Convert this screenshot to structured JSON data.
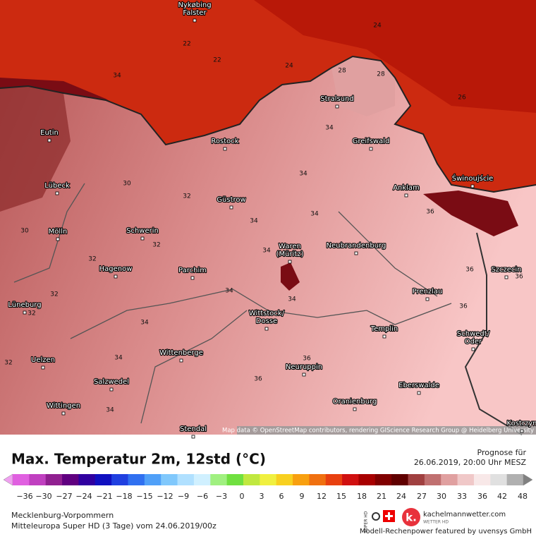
{
  "map": {
    "cities": [
      {
        "lines": [
          "Nykøbing",
          "Falster"
        ]
      },
      {
        "lines": [
          "Eutin"
        ]
      },
      {
        "lines": [
          "Rostock"
        ]
      },
      {
        "lines": [
          "Stralsund"
        ]
      },
      {
        "lines": [
          "Greifswald"
        ]
      },
      {
        "lines": [
          "Lübeck"
        ]
      },
      {
        "lines": [
          "Güstrow"
        ]
      },
      {
        "lines": [
          "Anklam"
        ]
      },
      {
        "lines": [
          "Świnoujście"
        ]
      },
      {
        "lines": [
          "Mölln"
        ]
      },
      {
        "lines": [
          "Schwerin"
        ]
      },
      {
        "lines": [
          "Waren",
          "(Müritz)"
        ]
      },
      {
        "lines": [
          "Neubrandenburg"
        ]
      },
      {
        "lines": [
          "Hagenow"
        ]
      },
      {
        "lines": [
          "Parchim"
        ]
      },
      {
        "lines": [
          "Szczecin"
        ]
      },
      {
        "lines": [
          "Prenzlau"
        ]
      },
      {
        "lines": [
          "Lüneburg"
        ]
      },
      {
        "lines": [
          "Wittstock/",
          "Dosse"
        ]
      },
      {
        "lines": [
          "Schwedt/",
          "Oder"
        ]
      },
      {
        "lines": [
          "Templin"
        ]
      },
      {
        "lines": [
          "Wittenberge"
        ]
      },
      {
        "lines": [
          "Uelzen"
        ]
      },
      {
        "lines": [
          "Neuruppin"
        ]
      },
      {
        "lines": [
          "Salzwedel"
        ]
      },
      {
        "lines": [
          "Eberswalde"
        ]
      },
      {
        "lines": [
          "Oranienburg"
        ]
      },
      {
        "lines": [
          "Wittingen"
        ]
      },
      {
        "lines": [
          "Stendal"
        ]
      },
      {
        "lines": [
          "Kostrzyn"
        ]
      }
    ],
    "contour_labels": [
      "24",
      "22",
      "22",
      "24",
      "34",
      "26",
      "28",
      "28",
      "34",
      "32",
      "34",
      "34",
      "34",
      "30",
      "30",
      "32",
      "32",
      "34",
      "32",
      "32",
      "34",
      "34",
      "36",
      "36",
      "34",
      "36",
      "34",
      "32",
      "36",
      "34",
      "36",
      "36"
    ],
    "attribution": "Map data © OpenStreetMap contributors, rendering GIScience Research Group @ Heidelberg University"
  },
  "legend": {
    "title": "Max. Temperatur 2m, 12std (°C)",
    "forecast_label": "Prognose für",
    "forecast_time": "26.06.2019, 20:00 Uhr MESZ",
    "ticks": [
      "−36",
      "−30",
      "−27",
      "−24",
      "−21",
      "−18",
      "−15",
      "−12",
      "−9",
      "−6",
      "−3",
      "0",
      "3",
      "6",
      "9",
      "12",
      "15",
      "18",
      "21",
      "24",
      "27",
      "30",
      "33",
      "36",
      "42",
      "48"
    ],
    "colors": [
      "#e060e0",
      "#c040c0",
      "#902090",
      "#600080",
      "#3000a0",
      "#1010c0",
      "#2040e0",
      "#3070f0",
      "#50a0f8",
      "#80c8fc",
      "#b0e0ff",
      "#d0f0ff",
      "#a0f080",
      "#70e040",
      "#c0e840",
      "#f0f040",
      "#f8d020",
      "#f8a010",
      "#f07010",
      "#e84010",
      "#d01010",
      "#a80000",
      "#800000",
      "#600000",
      "#a04040",
      "#c07070",
      "#e0a0a0",
      "#f0c8c8",
      "#f8e8e8",
      "#e0e0e0",
      "#b0b0b0"
    ],
    "region": "Mecklenburg-Vorpommern",
    "model": "Mitteleuropa Super HD (3 Tage) vom 24.06.2019/00z",
    "brand": "kachelmannwetter.com",
    "brand_sub": "WETTER HD",
    "badge": "SUPER HD",
    "credit": "Modell-Rechenpower featured by uvensys GmbH"
  }
}
